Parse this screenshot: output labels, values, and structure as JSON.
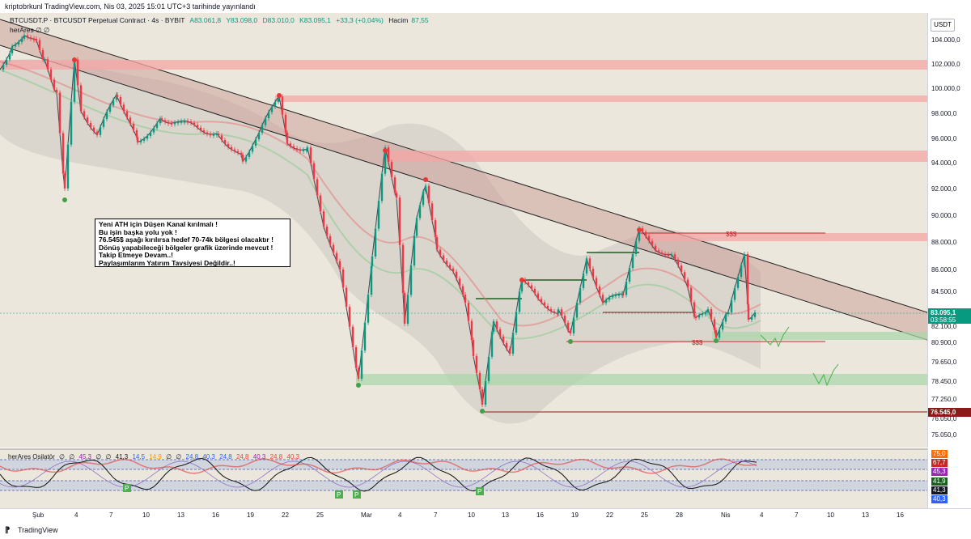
{
  "header": {
    "publisher": "kriptobrkunl TradingView.com, Nis 03, 2025 15:01 UTC+3 tarihinde yayınlandı"
  },
  "legend": {
    "symbol": "BTCUSDT.P · BTCUSDT Perpetual Contract · 4s · BYBIT",
    "open": "A83.061,8",
    "high": "Y83.098,0",
    "low": "D83.010,0",
    "close": "K83.095,1",
    "change": "+33,3 (+0,04%)",
    "volume_label": "Hacim",
    "volume": "87,55",
    "indicator_name": "herAres",
    "indicator_values": "∅ ∅"
  },
  "price_axis": {
    "currency": "USDT",
    "ticks": [
      "104.000,0",
      "102.000,0",
      "100.000,0",
      "98.000,0",
      "96.000,0",
      "94.000,0",
      "92.000,0",
      "90.000,0",
      "88.000,0",
      "86.000,0",
      "84.500,0",
      "82.100,0",
      "80.900,0",
      "79.650,0",
      "78.450,0",
      "77.250,0",
      "76.050,0",
      "75.050,0"
    ],
    "current_price": "83.095,1",
    "countdown": "03:58:55",
    "target_price": "76.545,0"
  },
  "annotation": {
    "lines": [
      "Yeni ATH için Düşen Kanal kırılmalı !",
      "Bu işin başka yolu yok !",
      "76.545$ aşağı kırılırsa hedef 70-74k bölgesi olacaktır !",
      "Dönüş yapabileceği bölgeler grafik üzerinde mevcut !",
      "Takip Etmeye Devam..!",
      "Paylaşımlarım Yatırım Tavsiyesi Değildir..!"
    ]
  },
  "chart_labels": {
    "liq_top": "$$$",
    "liq_bottom": "$$$"
  },
  "oscillator": {
    "name": "herAres Osilatör",
    "values": [
      "∅",
      "∅",
      "45,3",
      "∅",
      "∅",
      "41,3",
      "14,5",
      "14,9",
      "∅",
      "∅",
      "24,8",
      "40,3",
      "24,8",
      "24,8",
      "40,3",
      "24,8",
      "40,3"
    ],
    "value_colors": [
      "#131722",
      "#131722",
      "#9c27b0",
      "#131722",
      "#131722",
      "#131722",
      "#2962ff",
      "#ff9800",
      "#131722",
      "#131722",
      "#2962ff",
      "#2962ff",
      "#2962ff",
      "#f44336",
      "#9c27b0",
      "#f44336",
      "#f44336"
    ],
    "axis_tags": [
      {
        "value": "75,0",
        "color": "#ff6d00"
      },
      {
        "value": "67,7",
        "color": "#c62828"
      },
      {
        "value": "45,3",
        "color": "#9c27b0"
      },
      {
        "value": "41,9",
        "color": "#1b5e20"
      },
      {
        "value": "41,3",
        "color": "#131722"
      },
      {
        "value": "40,3",
        "color": "#2962ff"
      }
    ],
    "p_marker": "P"
  },
  "time_axis": {
    "labels": [
      "Şub",
      "4",
      "7",
      "10",
      "13",
      "16",
      "19",
      "22",
      "25",
      "Mar",
      "4",
      "7",
      "10",
      "13",
      "16",
      "19",
      "22",
      "25",
      "28",
      "Nis",
      "4",
      "7",
      "10",
      "13",
      "16"
    ]
  },
  "footer": {
    "brand": "TradingView"
  },
  "colors": {
    "up": "#089981",
    "down": "#f23645",
    "resistance": "#f4a6a6",
    "support": "#a8d5a8",
    "channel": "#c8948c"
  }
}
